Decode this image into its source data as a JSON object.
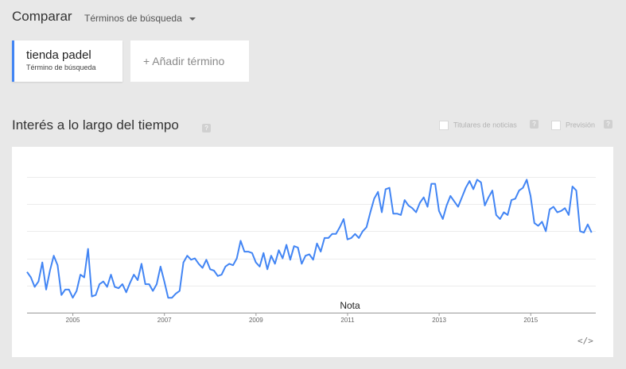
{
  "compare": {
    "title": "Comparar",
    "dropdown_label": "Términos de búsqueda"
  },
  "term": {
    "name": "tienda padel",
    "sublabel": "Término de búsqueda",
    "color": "#4285f4"
  },
  "add_term": {
    "label": "+ Añadir término"
  },
  "section": {
    "title": "Interés a lo largo del tiempo",
    "help": "?"
  },
  "options": {
    "news_label": "Titulares de noticias",
    "forecast_label": "Previsión",
    "help": "?"
  },
  "chart_data": {
    "type": "line",
    "title": "",
    "xlabel": "",
    "ylabel": "",
    "x_ticks": [
      "2005",
      "2007",
      "2009",
      "2011",
      "2013",
      "2015"
    ],
    "x_range": [
      2004.0,
      2016.42
    ],
    "ylim": [
      0,
      100
    ],
    "grid": true,
    "annotation": "Nota",
    "series": [
      {
        "color": "#4285f4",
        "start": 2004.0,
        "step": 0.0833,
        "values": [
          30,
          26,
          19,
          23,
          37,
          17,
          31,
          42,
          35,
          13,
          17,
          17,
          11,
          16,
          28,
          26,
          47,
          12,
          13,
          21,
          23,
          19,
          28,
          19,
          18,
          21,
          15,
          22,
          28,
          24,
          36,
          21,
          21,
          16,
          21,
          34,
          23,
          11,
          11,
          14,
          16,
          37,
          42,
          39,
          40,
          36,
          33,
          39,
          32,
          31,
          27,
          28,
          34,
          36,
          35,
          40,
          53,
          45,
          45,
          44,
          37,
          34,
          44,
          32,
          42,
          36,
          46,
          40,
          50,
          39,
          49,
          48,
          36,
          42,
          43,
          39,
          51,
          45,
          55,
          55,
          58,
          58,
          63,
          69,
          54,
          55,
          58,
          55,
          60,
          63,
          74,
          84,
          89,
          74,
          91,
          92,
          73,
          73,
          72,
          83,
          79,
          77,
          74,
          81,
          85,
          78,
          95,
          95,
          75,
          69,
          79,
          86,
          82,
          78,
          85,
          92,
          97,
          91,
          98,
          96,
          79,
          85,
          90,
          72,
          69,
          74,
          72,
          83,
          84,
          90,
          92,
          98,
          86,
          66,
          64,
          67,
          60,
          76,
          78,
          74,
          75,
          77,
          72,
          93,
          90,
          60,
          59,
          65,
          59
        ]
      }
    ]
  },
  "embed": {
    "icon": "embed-code-icon",
    "label": "</>"
  }
}
